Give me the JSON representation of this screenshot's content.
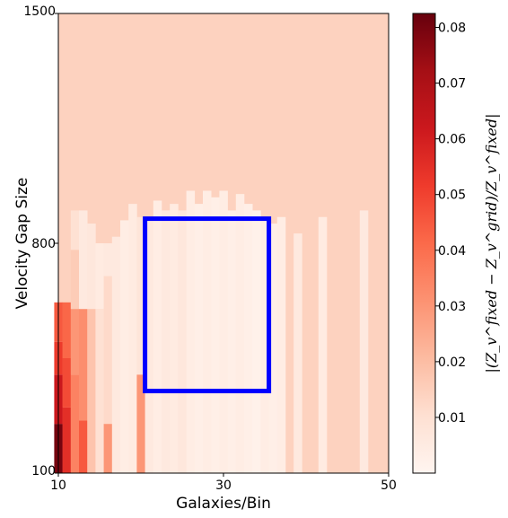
{
  "chart_data": {
    "type": "heatmap",
    "xlabel": "Galaxies/Bin",
    "ylabel": "Velocity Gap Size",
    "xlim": [
      10,
      50
    ],
    "ylim": [
      100,
      1500
    ],
    "x_ticks": [
      "10",
      "30",
      "50"
    ],
    "y_ticks": [
      "100",
      "800",
      "1500"
    ],
    "background_value": 0.0143,
    "colormap": "Reds",
    "colorbar": {
      "label": "|(Z_v^fixed − Z_v^grid)/Z_v^fixed|",
      "range": [
        0.0,
        0.0825
      ],
      "ticks": [
        "0.01",
        "0.02",
        "0.03",
        "0.04",
        "0.05",
        "0.06",
        "0.07",
        "0.08"
      ]
    },
    "columns": [
      {
        "x": 10,
        "top": 620,
        "segments": [
          [
            100,
            250,
            0.08
          ],
          [
            250,
            400,
            0.062
          ],
          [
            400,
            500,
            0.052
          ],
          [
            500,
            620,
            0.045
          ]
        ]
      },
      {
        "x": 11,
        "top": 620,
        "segments": [
          [
            100,
            300,
            0.055
          ],
          [
            300,
            450,
            0.048
          ],
          [
            450,
            620,
            0.042
          ]
        ]
      },
      {
        "x": 12,
        "top": 900,
        "segments": [
          [
            100,
            400,
            0.035
          ],
          [
            400,
            600,
            0.03
          ],
          [
            600,
            780,
            0.016
          ],
          [
            780,
            900,
            0.01
          ]
        ]
      },
      {
        "x": 13,
        "top": 920,
        "segments": [
          [
            100,
            260,
            0.045
          ],
          [
            260,
            600,
            0.032
          ],
          [
            600,
            900,
            0.006
          ]
        ]
      },
      {
        "x": 14,
        "top": 860,
        "segments": [
          [
            100,
            600,
            0.018
          ],
          [
            600,
            860,
            0.007
          ]
        ]
      },
      {
        "x": 15,
        "top": 800,
        "segments": [
          [
            100,
            600,
            0.01
          ],
          [
            600,
            800,
            0.005
          ]
        ]
      },
      {
        "x": 16,
        "top": 800,
        "segments": [
          [
            100,
            250,
            0.03
          ],
          [
            250,
            700,
            0.012
          ],
          [
            700,
            800,
            0.006
          ]
        ]
      },
      {
        "x": 17,
        "top": 820,
        "segments": [
          [
            100,
            820,
            0.006
          ]
        ]
      },
      {
        "x": 18,
        "top": 870,
        "segments": [
          [
            100,
            870,
            0.004
          ]
        ]
      },
      {
        "x": 19,
        "top": 920,
        "segments": [
          [
            100,
            920,
            0.005
          ]
        ]
      },
      {
        "x": 20,
        "top": 880,
        "segments": [
          [
            100,
            400,
            0.03
          ],
          [
            400,
            880,
            0.008
          ]
        ]
      },
      {
        "x": 21,
        "top": 880,
        "segments": [
          [
            100,
            880,
            0.006
          ]
        ]
      },
      {
        "x": 22,
        "top": 930,
        "segments": [
          [
            100,
            930,
            0.004
          ]
        ]
      },
      {
        "x": 23,
        "top": 900,
        "segments": [
          [
            100,
            900,
            0.006
          ]
        ]
      },
      {
        "x": 24,
        "top": 920,
        "segments": [
          [
            100,
            920,
            0.005
          ]
        ]
      },
      {
        "x": 25,
        "top": 900,
        "segments": [
          [
            100,
            900,
            0.007
          ]
        ]
      },
      {
        "x": 26,
        "top": 960,
        "segments": [
          [
            100,
            960,
            0.004
          ]
        ]
      },
      {
        "x": 27,
        "top": 920,
        "segments": [
          [
            100,
            920,
            0.003
          ]
        ]
      },
      {
        "x": 28,
        "top": 960,
        "segments": [
          [
            100,
            960,
            0.004
          ]
        ]
      },
      {
        "x": 29,
        "top": 940,
        "segments": [
          [
            100,
            940,
            0.003
          ]
        ]
      },
      {
        "x": 30,
        "top": 960,
        "segments": [
          [
            100,
            960,
            0.004
          ]
        ]
      },
      {
        "x": 31,
        "top": 900,
        "segments": [
          [
            100,
            900,
            0.003
          ]
        ]
      },
      {
        "x": 32,
        "top": 950,
        "segments": [
          [
            100,
            950,
            0.004
          ]
        ]
      },
      {
        "x": 33,
        "top": 920,
        "segments": [
          [
            100,
            920,
            0.003
          ]
        ]
      },
      {
        "x": 34,
        "top": 900,
        "segments": [
          [
            100,
            900,
            0.002
          ]
        ]
      },
      {
        "x": 35,
        "top": 880,
        "segments": [
          [
            100,
            880,
            0.004
          ]
        ]
      },
      {
        "x": 36,
        "top": 860,
        "segments": [
          [
            100,
            860,
            0.003
          ]
        ]
      },
      {
        "x": 37,
        "top": 880,
        "segments": [
          [
            100,
            880,
            0.004
          ]
        ]
      },
      {
        "x": 39,
        "top": 830,
        "segments": [
          [
            100,
            830,
            0.006
          ]
        ]
      },
      {
        "x": 42,
        "top": 880,
        "segments": [
          [
            100,
            880,
            0.005
          ]
        ]
      },
      {
        "x": 47,
        "top": 900,
        "segments": [
          [
            100,
            900,
            0.006
          ]
        ]
      }
    ],
    "highlight_box": {
      "x0": 20.5,
      "x1": 35.5,
      "y0": 350,
      "y1": 875,
      "color": "#0000ff"
    }
  }
}
